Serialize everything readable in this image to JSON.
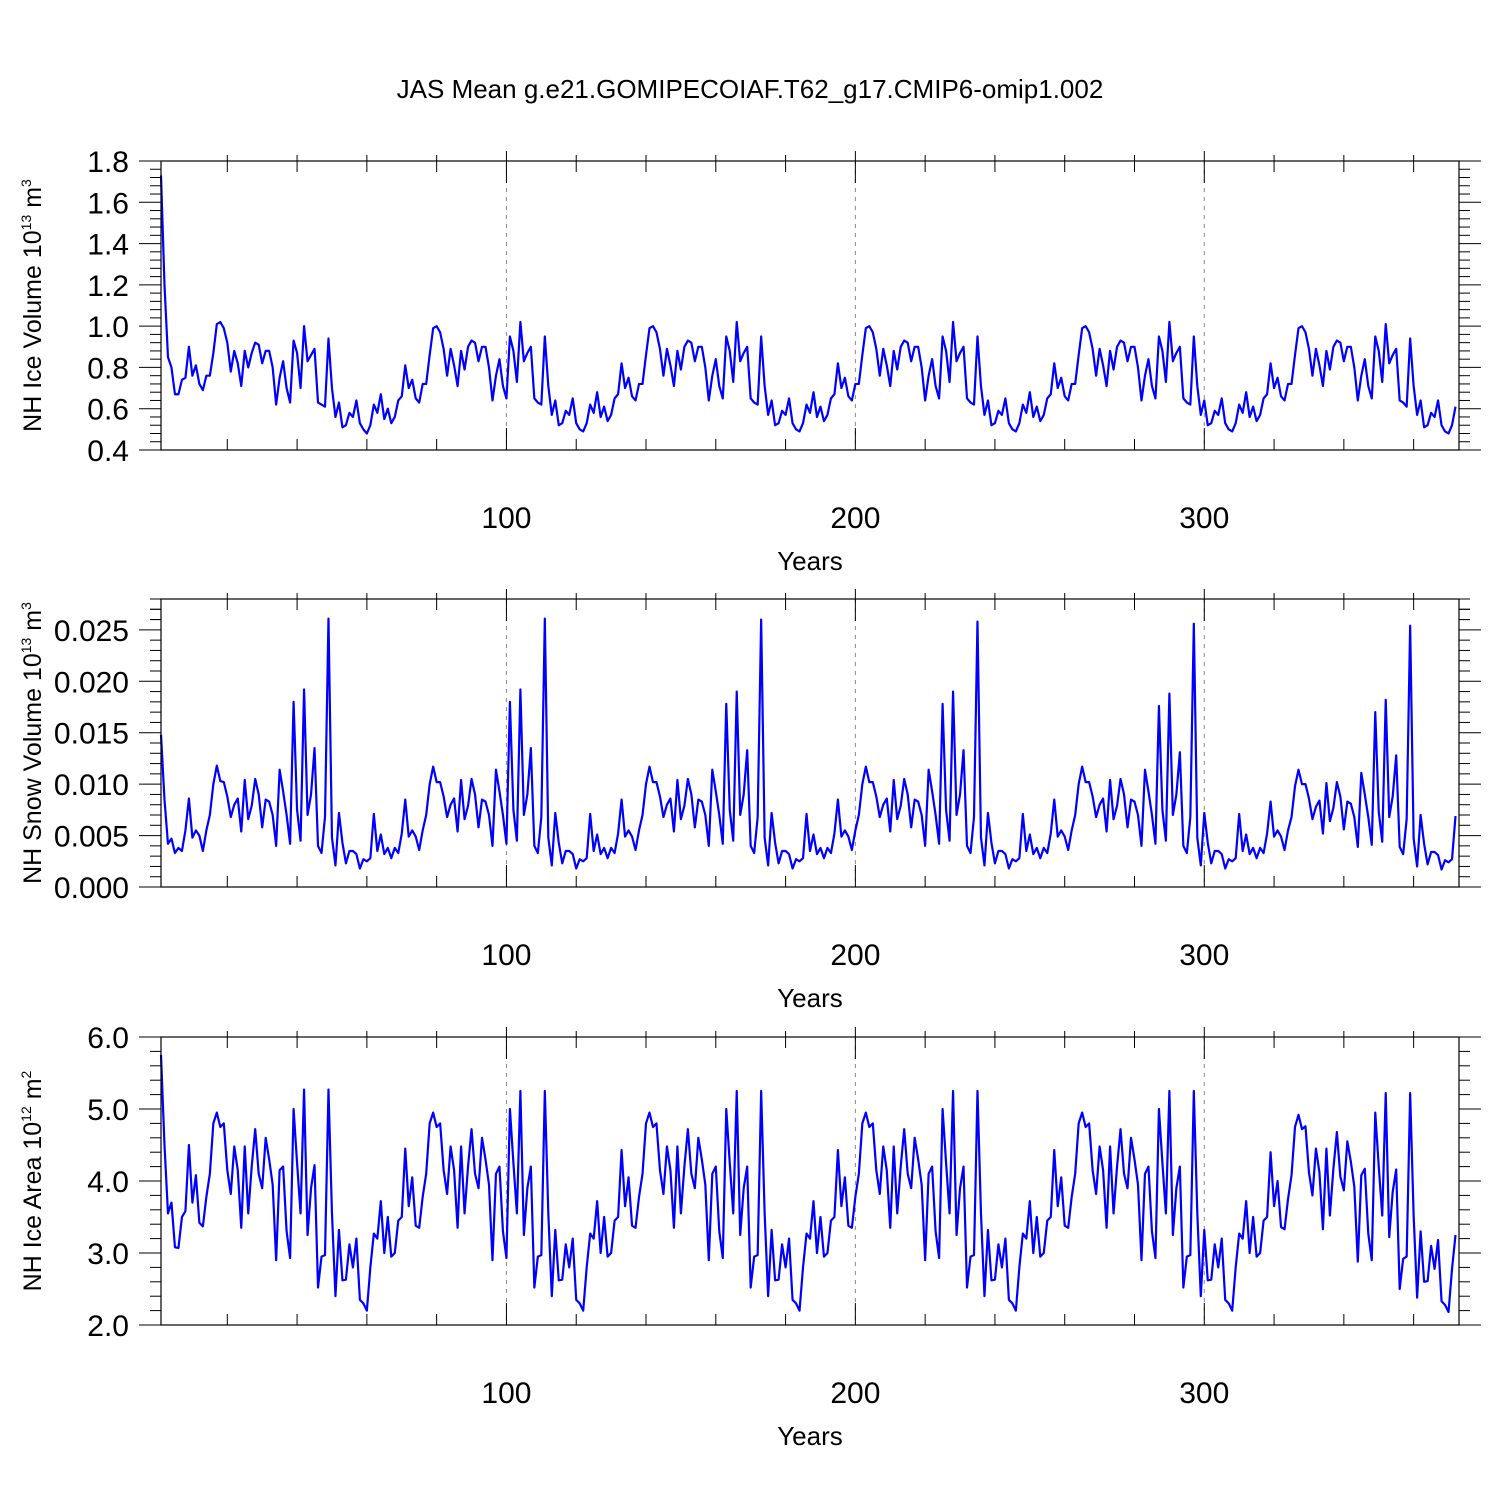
{
  "title": "JAS Mean g.e21.GOMIPECOIAF.T62_g17.CMIP6-omip1.002",
  "chart_data": [
    {
      "type": "line",
      "title": "",
      "xlabel": "Years",
      "ylabel": "NH Ice Volume 10",
      "ylabel_exp": "13",
      "ylabel_unit": " m",
      "ylabel_unit_exp": "3",
      "xlim": [
        1,
        373
      ],
      "ylim": [
        0.4,
        1.8
      ],
      "xticks": [
        "100",
        "200",
        "300"
      ],
      "yticks": [
        "0.4",
        "0.6",
        "0.8",
        "1.0",
        "1.2",
        "1.4",
        "1.6",
        "1.8"
      ],
      "grid_x_dashed_at": [
        100,
        200,
        300
      ],
      "color": "#0000ff",
      "x_start": 1,
      "x_step": 1,
      "values": [
        1.73,
        1.2,
        0.85,
        0.8,
        0.67,
        0.67,
        0.74,
        0.75,
        0.9,
        0.76,
        0.81,
        0.72,
        0.69,
        0.76,
        0.76,
        0.87,
        1.01,
        1.02,
        0.99,
        0.92,
        0.78,
        0.88,
        0.82,
        0.71,
        0.88,
        0.8,
        0.87,
        0.92,
        0.91,
        0.82,
        0.88,
        0.88,
        0.8,
        0.62,
        0.75,
        0.83,
        0.7,
        0.63,
        0.93,
        0.87,
        0.7,
        1.0,
        0.83,
        0.86,
        0.89,
        0.63,
        0.62,
        0.61,
        0.94,
        0.7,
        0.56,
        0.63,
        0.51,
        0.52,
        0.58,
        0.56,
        0.64,
        0.53,
        0.5,
        0.48,
        0.52,
        0.62,
        0.58,
        0.67,
        0.55,
        0.6,
        0.53,
        0.56,
        0.64,
        0.66,
        0.81,
        0.7,
        0.74,
        0.65,
        0.63,
        0.72,
        0.72,
        0.86,
        0.99,
        1.0,
        0.97,
        0.89,
        0.76,
        0.89,
        0.81,
        0.71,
        0.88,
        0.79,
        0.9,
        0.93,
        0.92,
        0.83,
        0.9,
        0.9,
        0.8,
        0.64,
        0.76,
        0.84,
        0.71,
        0.65,
        0.95,
        0.88,
        0.73,
        1.02,
        0.83,
        0.87,
        0.9,
        0.65,
        0.63,
        0.62,
        0.95,
        0.71,
        0.57,
        0.64,
        0.52,
        0.53,
        0.59,
        0.57,
        0.65,
        0.53,
        0.5,
        0.49,
        0.53,
        0.62,
        0.58,
        0.68,
        0.56,
        0.61,
        0.54,
        0.57,
        0.65,
        0.67,
        0.82,
        0.7,
        0.75,
        0.66,
        0.64,
        0.72,
        0.72,
        0.86,
        0.99,
        1.0,
        0.97,
        0.89,
        0.76,
        0.89,
        0.81,
        0.71,
        0.88,
        0.79,
        0.9,
        0.93,
        0.92,
        0.83,
        0.9,
        0.9,
        0.8,
        0.64,
        0.76,
        0.84,
        0.71,
        0.65,
        0.95,
        0.88,
        0.73,
        1.02,
        0.83,
        0.87,
        0.9,
        0.65,
        0.63,
        0.62,
        0.95,
        0.71,
        0.57,
        0.64,
        0.52,
        0.53,
        0.59,
        0.57,
        0.65,
        0.53,
        0.5,
        0.49,
        0.53,
        0.62,
        0.58,
        0.68,
        0.56,
        0.61,
        0.54,
        0.57,
        0.65,
        0.67,
        0.82,
        0.7,
        0.75,
        0.66,
        0.64,
        0.72,
        0.72,
        0.86,
        0.99,
        1.0,
        0.97,
        0.89,
        0.76,
        0.89,
        0.81,
        0.71,
        0.88,
        0.79,
        0.9,
        0.93,
        0.92,
        0.83,
        0.9,
        0.9,
        0.8,
        0.64,
        0.76,
        0.84,
        0.71,
        0.65,
        0.95,
        0.88,
        0.73,
        1.02,
        0.83,
        0.87,
        0.9,
        0.65,
        0.63,
        0.62,
        0.95,
        0.71,
        0.57,
        0.64,
        0.52,
        0.53,
        0.59,
        0.57,
        0.65,
        0.53,
        0.5,
        0.49,
        0.53,
        0.62,
        0.58,
        0.68,
        0.56,
        0.61,
        0.54,
        0.57,
        0.65,
        0.67,
        0.82,
        0.7,
        0.75,
        0.66,
        0.64,
        0.72,
        0.72,
        0.86,
        0.99,
        1.0,
        0.97,
        0.89,
        0.76,
        0.89,
        0.81,
        0.71,
        0.88,
        0.79,
        0.9,
        0.93,
        0.92,
        0.83,
        0.9,
        0.9,
        0.8,
        0.64,
        0.76,
        0.84,
        0.71,
        0.65,
        0.95,
        0.88,
        0.73,
        1.02,
        0.83,
        0.87,
        0.9,
        0.65,
        0.63,
        0.62,
        0.95,
        0.71,
        0.57,
        0.64,
        0.52,
        0.53,
        0.59,
        0.57,
        0.65,
        0.53,
        0.5,
        0.49,
        0.53,
        0.62,
        0.58,
        0.68,
        0.56,
        0.61,
        0.54,
        0.57,
        0.65,
        0.67,
        0.82,
        0.7,
        0.75,
        0.66,
        0.64,
        0.72,
        0.72,
        0.86,
        0.99,
        1.0,
        0.97,
        0.89,
        0.76,
        0.89,
        0.81,
        0.71,
        0.88,
        0.79,
        0.9,
        0.93,
        0.92,
        0.83,
        0.9,
        0.9,
        0.8,
        0.64,
        0.76,
        0.84,
        0.71,
        0.65,
        0.95,
        0.88,
        0.73,
        1.01,
        0.82,
        0.86,
        0.89,
        0.64,
        0.63,
        0.61,
        0.94,
        0.71,
        0.57,
        0.64,
        0.51,
        0.52,
        0.58,
        0.56,
        0.64,
        0.52,
        0.49,
        0.48,
        0.52,
        0.61
      ]
    },
    {
      "type": "line",
      "title": "",
      "xlabel": "Years",
      "ylabel": "NH Snow Volume 10",
      "ylabel_exp": "13",
      "ylabel_unit": " m",
      "ylabel_unit_exp": "3",
      "xlim": [
        1,
        373
      ],
      "ylim": [
        0.0,
        0.028
      ],
      "xticks": [
        "100",
        "200",
        "300"
      ],
      "yticks": [
        "0.000",
        "0.005",
        "0.010",
        "0.015",
        "0.020",
        "0.025"
      ],
      "grid_x_dashed_at": [
        100,
        200,
        300
      ],
      "color": "#0000ff",
      "x_start": 1,
      "x_step": 1,
      "values": [
        0.0148,
        0.0085,
        0.0042,
        0.0047,
        0.0033,
        0.0038,
        0.0035,
        0.0055,
        0.0086,
        0.0048,
        0.0055,
        0.005,
        0.0035,
        0.0055,
        0.007,
        0.01,
        0.0118,
        0.0103,
        0.0102,
        0.0088,
        0.0068,
        0.008,
        0.0086,
        0.0054,
        0.0104,
        0.0066,
        0.0079,
        0.0105,
        0.009,
        0.0058,
        0.0085,
        0.0083,
        0.007,
        0.004,
        0.0114,
        0.0093,
        0.007,
        0.0042,
        0.018,
        0.0075,
        0.0045,
        0.0192,
        0.007,
        0.009,
        0.0135,
        0.004,
        0.0033,
        0.0068,
        0.0261,
        0.0048,
        0.0021,
        0.0072,
        0.0043,
        0.0023,
        0.0035,
        0.0035,
        0.0032,
        0.0018,
        0.0027,
        0.0025,
        0.0028,
        0.0071,
        0.0035,
        0.0051,
        0.0032,
        0.0038,
        0.0028,
        0.0038,
        0.0033,
        0.0052,
        0.0085,
        0.0049,
        0.0055,
        0.0049,
        0.0036,
        0.0055,
        0.007,
        0.01,
        0.0117,
        0.0102,
        0.0102,
        0.0088,
        0.0068,
        0.008,
        0.0086,
        0.0054,
        0.0104,
        0.0066,
        0.0079,
        0.0105,
        0.009,
        0.0058,
        0.0085,
        0.0083,
        0.007,
        0.004,
        0.0114,
        0.0093,
        0.007,
        0.0042,
        0.018,
        0.0075,
        0.0045,
        0.0192,
        0.007,
        0.009,
        0.0135,
        0.004,
        0.0033,
        0.0068,
        0.0261,
        0.0048,
        0.0021,
        0.0072,
        0.0043,
        0.0023,
        0.0035,
        0.0035,
        0.0032,
        0.0018,
        0.0027,
        0.0025,
        0.0028,
        0.0071,
        0.0035,
        0.0051,
        0.0032,
        0.0038,
        0.0028,
        0.0038,
        0.0033,
        0.0052,
        0.0085,
        0.0049,
        0.0055,
        0.0049,
        0.0036,
        0.0055,
        0.007,
        0.01,
        0.0117,
        0.0102,
        0.0102,
        0.0088,
        0.0068,
        0.008,
        0.0086,
        0.0054,
        0.0104,
        0.0066,
        0.0079,
        0.0105,
        0.009,
        0.0058,
        0.0085,
        0.0083,
        0.007,
        0.004,
        0.0114,
        0.0093,
        0.007,
        0.0042,
        0.0178,
        0.0075,
        0.0045,
        0.019,
        0.007,
        0.009,
        0.0133,
        0.004,
        0.0033,
        0.0068,
        0.026,
        0.0048,
        0.0021,
        0.0072,
        0.0043,
        0.0023,
        0.0035,
        0.0035,
        0.0032,
        0.0018,
        0.0027,
        0.0025,
        0.0028,
        0.0071,
        0.0035,
        0.0051,
        0.0032,
        0.0038,
        0.0028,
        0.0038,
        0.0033,
        0.0052,
        0.0085,
        0.0049,
        0.0055,
        0.0049,
        0.0036,
        0.0055,
        0.007,
        0.01,
        0.0117,
        0.0102,
        0.0102,
        0.0088,
        0.0068,
        0.008,
        0.0086,
        0.0054,
        0.0104,
        0.0066,
        0.0079,
        0.0105,
        0.009,
        0.0058,
        0.0085,
        0.0083,
        0.007,
        0.004,
        0.0114,
        0.0093,
        0.007,
        0.0042,
        0.0178,
        0.0075,
        0.0045,
        0.019,
        0.007,
        0.009,
        0.0133,
        0.004,
        0.0033,
        0.0068,
        0.0258,
        0.0048,
        0.0021,
        0.0072,
        0.0043,
        0.0023,
        0.0035,
        0.0035,
        0.0032,
        0.0018,
        0.0027,
        0.0025,
        0.0028,
        0.0071,
        0.0035,
        0.0051,
        0.0032,
        0.0038,
        0.0028,
        0.0038,
        0.0033,
        0.0052,
        0.0085,
        0.0049,
        0.0055,
        0.0049,
        0.0036,
        0.0055,
        0.007,
        0.01,
        0.0117,
        0.0102,
        0.0102,
        0.0088,
        0.0068,
        0.008,
        0.0086,
        0.0054,
        0.0104,
        0.0066,
        0.0079,
        0.0105,
        0.009,
        0.0058,
        0.0085,
        0.0083,
        0.007,
        0.004,
        0.0114,
        0.0093,
        0.007,
        0.0042,
        0.0176,
        0.0075,
        0.0045,
        0.0188,
        0.007,
        0.009,
        0.0131,
        0.004,
        0.0033,
        0.0068,
        0.0256,
        0.0048,
        0.0021,
        0.0072,
        0.0043,
        0.0023,
        0.0035,
        0.0035,
        0.0032,
        0.0018,
        0.0027,
        0.0025,
        0.0028,
        0.0071,
        0.0035,
        0.0051,
        0.0032,
        0.0038,
        0.0028,
        0.0038,
        0.0033,
        0.0052,
        0.0083,
        0.0049,
        0.0055,
        0.0049,
        0.0036,
        0.0055,
        0.0068,
        0.0098,
        0.0114,
        0.01,
        0.01,
        0.0086,
        0.0066,
        0.0078,
        0.0084,
        0.0052,
        0.0101,
        0.0064,
        0.0077,
        0.0102,
        0.0088,
        0.0056,
        0.0083,
        0.0081,
        0.0068,
        0.0039,
        0.0111,
        0.009,
        0.0068,
        0.0041,
        0.017,
        0.0073,
        0.0044,
        0.0182,
        0.0068,
        0.0088,
        0.0128,
        0.0039,
        0.0032,
        0.0066,
        0.0254,
        0.0047,
        0.002,
        0.007,
        0.0042,
        0.0022,
        0.0034,
        0.0034,
        0.0031,
        0.0017,
        0.0026,
        0.0024,
        0.0027,
        0.0069
      ]
    },
    {
      "type": "line",
      "title": "",
      "xlabel": "Years",
      "ylabel": "NH Ice Area 10",
      "ylabel_exp": "12",
      "ylabel_unit": " m",
      "ylabel_unit_exp": "2",
      "xlim": [
        1,
        373
      ],
      "ylim": [
        2.0,
        6.0
      ],
      "xticks": [
        "100",
        "200",
        "300"
      ],
      "yticks": [
        "2.0",
        "3.0",
        "4.0",
        "5.0",
        "6.0"
      ],
      "grid_x_dashed_at": [
        100,
        200,
        300
      ],
      "color": "#0000ff",
      "x_start": 1,
      "x_step": 1,
      "values": [
        5.75,
        4.5,
        3.55,
        3.7,
        3.08,
        3.07,
        3.5,
        3.58,
        4.5,
        3.7,
        4.08,
        3.42,
        3.37,
        3.78,
        4.1,
        4.8,
        4.95,
        4.75,
        4.8,
        4.15,
        3.82,
        4.48,
        4.15,
        3.35,
        4.48,
        3.55,
        4.2,
        4.72,
        4.1,
        3.9,
        4.6,
        4.3,
        3.95,
        2.9,
        4.15,
        4.2,
        3.3,
        2.93,
        5.0,
        4.25,
        3.55,
        5.27,
        3.25,
        3.9,
        4.22,
        2.52,
        2.95,
        2.97,
        5.27,
        3.55,
        2.4,
        3.32,
        2.62,
        2.63,
        3.12,
        2.8,
        3.2,
        2.35,
        2.3,
        2.2,
        2.8,
        3.27,
        3.2,
        3.72,
        3.0,
        3.5,
        2.95,
        3.0,
        3.45,
        3.5,
        4.45,
        3.65,
        4.05,
        3.38,
        3.35,
        3.78,
        4.1,
        4.8,
        4.95,
        4.75,
        4.8,
        4.15,
        3.82,
        4.48,
        4.15,
        3.35,
        4.48,
        3.55,
        4.2,
        4.72,
        4.1,
        3.9,
        4.6,
        4.3,
        3.95,
        2.9,
        4.1,
        4.2,
        3.3,
        2.93,
        5.0,
        4.25,
        3.55,
        5.25,
        3.25,
        3.9,
        4.2,
        2.52,
        2.95,
        2.97,
        5.25,
        3.55,
        2.4,
        3.32,
        2.62,
        2.63,
        3.12,
        2.8,
        3.2,
        2.35,
        2.3,
        2.2,
        2.8,
        3.27,
        3.2,
        3.72,
        3.0,
        3.5,
        2.95,
        3.0,
        3.45,
        3.5,
        4.43,
        3.65,
        4.05,
        3.38,
        3.35,
        3.78,
        4.1,
        4.8,
        4.95,
        4.75,
        4.8,
        4.15,
        3.82,
        4.48,
        4.15,
        3.35,
        4.48,
        3.55,
        4.2,
        4.72,
        4.1,
        3.9,
        4.6,
        4.3,
        3.95,
        2.9,
        4.1,
        4.2,
        3.3,
        2.93,
        5.0,
        4.25,
        3.55,
        5.25,
        3.25,
        3.9,
        4.2,
        2.52,
        2.95,
        2.97,
        5.25,
        3.55,
        2.4,
        3.32,
        2.62,
        2.63,
        3.12,
        2.8,
        3.2,
        2.35,
        2.3,
        2.2,
        2.8,
        3.27,
        3.2,
        3.72,
        3.0,
        3.5,
        2.95,
        3.0,
        3.45,
        3.5,
        4.43,
        3.65,
        4.05,
        3.38,
        3.35,
        3.78,
        4.1,
        4.8,
        4.95,
        4.75,
        4.8,
        4.15,
        3.82,
        4.48,
        4.15,
        3.35,
        4.48,
        3.55,
        4.2,
        4.72,
        4.1,
        3.9,
        4.6,
        4.3,
        3.95,
        2.9,
        4.1,
        4.2,
        3.3,
        2.93,
        5.0,
        4.25,
        3.55,
        5.25,
        3.25,
        3.9,
        4.2,
        2.52,
        2.95,
        2.97,
        5.25,
        3.55,
        2.4,
        3.32,
        2.62,
        2.63,
        3.12,
        2.8,
        3.2,
        2.35,
        2.3,
        2.2,
        2.8,
        3.27,
        3.2,
        3.72,
        3.0,
        3.5,
        2.95,
        3.0,
        3.45,
        3.5,
        4.43,
        3.65,
        4.05,
        3.38,
        3.35,
        3.78,
        4.1,
        4.8,
        4.95,
        4.75,
        4.8,
        4.15,
        3.82,
        4.48,
        4.15,
        3.35,
        4.48,
        3.55,
        4.2,
        4.72,
        4.1,
        3.9,
        4.6,
        4.3,
        3.95,
        2.9,
        4.1,
        4.2,
        3.3,
        2.93,
        5.0,
        4.25,
        3.55,
        5.25,
        3.25,
        3.9,
        4.2,
        2.52,
        2.95,
        2.97,
        5.25,
        3.55,
        2.4,
        3.32,
        2.62,
        2.63,
        3.12,
        2.8,
        3.2,
        2.35,
        2.3,
        2.2,
        2.8,
        3.27,
        3.2,
        3.72,
        3.0,
        3.5,
        2.95,
        3.0,
        3.45,
        3.5,
        4.4,
        3.65,
        4.0,
        3.36,
        3.33,
        3.75,
        4.08,
        4.75,
        4.92,
        4.72,
        4.76,
        4.12,
        3.8,
        4.45,
        4.12,
        3.33,
        4.45,
        3.52,
        4.17,
        4.68,
        4.06,
        3.87,
        4.55,
        4.27,
        3.92,
        2.88,
        4.08,
        4.17,
        3.27,
        2.9,
        4.95,
        4.2,
        3.52,
        5.22,
        3.22,
        3.85,
        4.16,
        2.5,
        2.92,
        2.95,
        5.22,
        3.52,
        2.38,
        3.3,
        2.6,
        2.61,
        3.1,
        2.78,
        3.18,
        2.33,
        2.28,
        2.18,
        2.78,
        3.25
      ]
    }
  ]
}
